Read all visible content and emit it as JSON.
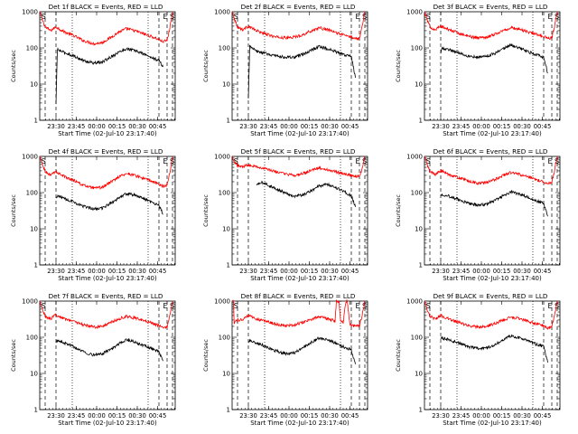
{
  "chart_data": [
    {
      "type": "line",
      "title": "Det 1f BLACK = Events, RED = LLD",
      "ylabel": "Counts/sec",
      "xlabel": "Start Time (02-Jul-10 23:17:40)",
      "x_tick_labels": [
        "23:30",
        "23:45",
        "00:00",
        "00:15",
        "00:30",
        "00:45"
      ],
      "y_tick_labels": [
        "1",
        "10",
        "100",
        "1000"
      ],
      "ylim": [
        1,
        1000
      ],
      "yscale": "log",
      "xlim_minutes": [
        0,
        100
      ],
      "marker_labels": [
        "S",
        "E",
        "S"
      ],
      "series": [
        {
          "name": "LLD",
          "color": "#ff0000",
          "x": [
            0,
            2,
            4,
            8,
            12,
            18,
            25,
            32,
            40,
            46,
            52,
            58,
            64,
            70,
            76,
            82,
            88,
            91,
            94,
            96,
            98
          ],
          "y": [
            1000,
            600,
            380,
            300,
            380,
            280,
            220,
            160,
            130,
            140,
            190,
            270,
            340,
            300,
            250,
            210,
            170,
            150,
            160,
            350,
            1000
          ]
        },
        {
          "name": "Events",
          "color": "#000000",
          "x": [
            12,
            13,
            18,
            25,
            32,
            40,
            46,
            52,
            58,
            64,
            70,
            76,
            82,
            88,
            91
          ],
          "y": [
            2.8,
            90,
            75,
            60,
            45,
            38,
            40,
            55,
            75,
            95,
            85,
            70,
            55,
            45,
            30
          ]
        }
      ]
    },
    {
      "type": "line",
      "title": "Det 2f BLACK = Events, RED = LLD",
      "ylabel": "Counts/sec",
      "xlabel": "Start Time (02-Jul-10 23:17:40)",
      "x_tick_labels": [
        "23:30",
        "23:45",
        "00:00",
        "00:15",
        "00:30",
        "00:45"
      ],
      "y_tick_labels": [
        "1",
        "10",
        "100",
        "1000"
      ],
      "ylim": [
        1,
        1000
      ],
      "yscale": "log",
      "xlim_minutes": [
        0,
        100
      ],
      "marker_labels": [
        "S",
        "E",
        "S"
      ],
      "series": [
        {
          "name": "LLD",
          "color": "#ff0000",
          "x": [
            0,
            2,
            4,
            8,
            12,
            18,
            25,
            32,
            40,
            46,
            52,
            58,
            64,
            70,
            76,
            82,
            88,
            91,
            94,
            96,
            98
          ],
          "y": [
            1000,
            600,
            380,
            320,
            400,
            300,
            240,
            200,
            190,
            200,
            230,
            290,
            360,
            320,
            270,
            230,
            200,
            180,
            190,
            400,
            1000
          ]
        },
        {
          "name": "Events",
          "color": "#000000",
          "x": [
            12,
            13,
            18,
            25,
            32,
            40,
            46,
            52,
            58,
            64,
            70,
            76,
            82,
            88,
            91
          ],
          "y": [
            4,
            110,
            80,
            70,
            60,
            55,
            55,
            65,
            85,
            110,
            95,
            80,
            65,
            60,
            15
          ]
        }
      ]
    },
    {
      "type": "line",
      "title": "Det 3f BLACK = Events, RED = LLD",
      "ylabel": "Counts/sec",
      "xlabel": "Start Time (02-Jul-10 23:17:40)",
      "x_tick_labels": [
        "23:30",
        "23:45",
        "00:00",
        "00:15",
        "00:30",
        "00:45"
      ],
      "y_tick_labels": [
        "1",
        "10",
        "100",
        "1000"
      ],
      "ylim": [
        1,
        1000
      ],
      "yscale": "log",
      "xlim_minutes": [
        0,
        100
      ],
      "marker_labels": [
        "S",
        "E",
        "S"
      ],
      "series": [
        {
          "name": "LLD",
          "color": "#ff0000",
          "x": [
            0,
            2,
            4,
            8,
            12,
            18,
            25,
            32,
            40,
            46,
            52,
            58,
            64,
            70,
            76,
            82,
            88,
            91,
            94,
            96,
            98
          ],
          "y": [
            1000,
            600,
            380,
            320,
            400,
            320,
            260,
            210,
            190,
            200,
            240,
            300,
            360,
            330,
            280,
            240,
            210,
            180,
            190,
            400,
            1000
          ]
        },
        {
          "name": "Events",
          "color": "#000000",
          "x": [
            12,
            13,
            18,
            25,
            32,
            40,
            46,
            52,
            58,
            64,
            70,
            76,
            82,
            88,
            91
          ],
          "y": [
            70,
            100,
            90,
            75,
            60,
            55,
            60,
            70,
            95,
            120,
            100,
            80,
            65,
            55,
            20
          ]
        }
      ]
    },
    {
      "type": "line",
      "title": "Det 4f BLACK = Events, RED = LLD",
      "ylabel": "Counts/sec",
      "xlabel": "Start Time (02-Jul-10 23:17:40)",
      "x_tick_labels": [
        "23:30",
        "23:45",
        "00:00",
        "00:15",
        "00:30",
        "00:45"
      ],
      "y_tick_labels": [
        "1",
        "10",
        "100",
        "1000"
      ],
      "ylim": [
        1,
        1000
      ],
      "yscale": "log",
      "xlim_minutes": [
        0,
        100
      ],
      "marker_labels": [
        "S",
        "E",
        "S"
      ],
      "series": [
        {
          "name": "LLD",
          "color": "#ff0000",
          "x": [
            0,
            2,
            4,
            8,
            12,
            18,
            25,
            32,
            40,
            46,
            52,
            58,
            64,
            70,
            76,
            82,
            88,
            91,
            94,
            96,
            98
          ],
          "y": [
            1000,
            600,
            380,
            300,
            380,
            280,
            220,
            160,
            130,
            140,
            190,
            270,
            340,
            300,
            250,
            210,
            170,
            150,
            160,
            350,
            1000
          ]
        },
        {
          "name": "Events",
          "color": "#000000",
          "x": [
            12,
            13,
            18,
            25,
            32,
            40,
            46,
            52,
            58,
            64,
            70,
            76,
            82,
            88,
            91
          ],
          "y": [
            70,
            80,
            70,
            55,
            42,
            35,
            37,
            50,
            70,
            95,
            85,
            70,
            55,
            45,
            25
          ]
        }
      ]
    },
    {
      "type": "line",
      "title": "Det 5f BLACK = Events, RED = LLD",
      "ylabel": "Counts/sec",
      "xlabel": "Start Time (02-Jul-10 23:17:40)",
      "x_tick_labels": [
        "23:30",
        "23:45",
        "00:00",
        "00:15",
        "00:30",
        "00:45"
      ],
      "y_tick_labels": [
        "1",
        "10",
        "100",
        "1000"
      ],
      "ylim": [
        1,
        1000
      ],
      "yscale": "log",
      "xlim_minutes": [
        0,
        100
      ],
      "marker_labels": [
        "S",
        "E",
        "S"
      ],
      "series": [
        {
          "name": "LLD",
          "color": "#ff0000",
          "x": [
            0,
            2,
            4,
            8,
            12,
            18,
            25,
            32,
            40,
            46,
            52,
            58,
            64,
            70,
            76,
            82,
            88,
            91,
            94,
            96,
            98
          ],
          "y": [
            1000,
            700,
            550,
            520,
            600,
            520,
            450,
            380,
            320,
            300,
            330,
            400,
            480,
            430,
            380,
            340,
            300,
            280,
            290,
            450,
            1000
          ]
        },
        {
          "name": "Events",
          "color": "#000000",
          "x": [
            18,
            22,
            25,
            32,
            40,
            46,
            52,
            58,
            64,
            70,
            76,
            82,
            88,
            91
          ],
          "y": [
            160,
            190,
            170,
            130,
            95,
            80,
            85,
            110,
            150,
            170,
            140,
            110,
            80,
            40
          ]
        }
      ]
    },
    {
      "type": "line",
      "title": "Det 6f BLACK = Events, RED = LLD",
      "ylabel": "Counts/sec",
      "xlabel": "Start Time (02-Jul-10 23:17:40)",
      "x_tick_labels": [
        "23:30",
        "23:45",
        "00:00",
        "00:15",
        "00:30",
        "00:45"
      ],
      "y_tick_labels": [
        "1",
        "10",
        "100",
        "1000"
      ],
      "ylim": [
        1,
        1000
      ],
      "yscale": "log",
      "xlim_minutes": [
        0,
        100
      ],
      "marker_labels": [
        "S",
        "E",
        "S"
      ],
      "series": [
        {
          "name": "LLD",
          "color": "#ff0000",
          "x": [
            0,
            2,
            4,
            8,
            12,
            18,
            25,
            32,
            40,
            46,
            52,
            58,
            64,
            70,
            76,
            82,
            88,
            91,
            94,
            96,
            98
          ],
          "y": [
            1000,
            600,
            380,
            320,
            400,
            320,
            260,
            210,
            180,
            190,
            230,
            300,
            360,
            320,
            270,
            230,
            200,
            180,
            190,
            400,
            1000
          ]
        },
        {
          "name": "Events",
          "color": "#000000",
          "x": [
            12,
            13,
            18,
            25,
            32,
            40,
            46,
            52,
            58,
            64,
            70,
            76,
            82,
            88,
            91
          ],
          "y": [
            80,
            90,
            80,
            65,
            50,
            45,
            48,
            60,
            80,
            105,
            90,
            75,
            60,
            50,
            22
          ]
        }
      ]
    },
    {
      "type": "line",
      "title": "Det 7f BLACK = Events, RED = LLD",
      "ylabel": "Counts/sec",
      "xlabel": "Start Time (02-Jul-10 23:17:40)",
      "x_tick_labels": [
        "23:30",
        "23:45",
        "00:00",
        "00:15",
        "00:30",
        "00:45"
      ],
      "y_tick_labels": [
        "1",
        "10",
        "100",
        "1000"
      ],
      "ylim": [
        1,
        1000
      ],
      "yscale": "log",
      "xlim_minutes": [
        0,
        100
      ],
      "marker_labels": [
        "S",
        "E",
        "S"
      ],
      "series": [
        {
          "name": "LLD",
          "color": "#ff0000",
          "x": [
            0,
            2,
            4,
            8,
            12,
            18,
            25,
            32,
            40,
            46,
            52,
            58,
            64,
            70,
            76,
            82,
            88,
            91,
            94,
            96,
            98
          ],
          "y": [
            1000,
            600,
            380,
            320,
            420,
            330,
            280,
            220,
            190,
            200,
            250,
            320,
            380,
            340,
            290,
            250,
            210,
            180,
            190,
            400,
            1000
          ]
        },
        {
          "name": "Events",
          "color": "#000000",
          "x": [
            12,
            13,
            18,
            25,
            32,
            40,
            46,
            52,
            58,
            64,
            70,
            76,
            82,
            88,
            91
          ],
          "y": [
            70,
            80,
            70,
            55,
            40,
            32,
            35,
            45,
            65,
            85,
            75,
            60,
            50,
            40,
            22
          ]
        }
      ]
    },
    {
      "type": "line",
      "title": "Det 8f BLACK = Events, RED = LLD",
      "ylabel": "Counts/sec",
      "xlabel": "Start Time (02-Jul-10 23:17:40)",
      "x_tick_labels": [
        "23:30",
        "23:45",
        "00:00",
        "00:15",
        "00:30",
        "00:45"
      ],
      "y_tick_labels": [
        "1",
        "10",
        "100",
        "1000"
      ],
      "ylim": [
        1,
        1000
      ],
      "yscale": "log",
      "xlim_minutes": [
        0,
        100
      ],
      "marker_labels": [
        "S",
        "E",
        "S"
      ],
      "series": [
        {
          "name": "LLD",
          "color": "#ff0000",
          "x": [
            0,
            1,
            1.5,
            4,
            8,
            12,
            18,
            25,
            32,
            40,
            46,
            52,
            58,
            64,
            70,
            76,
            77,
            79,
            80,
            82,
            84,
            85,
            87,
            88,
            91,
            94,
            96,
            98
          ],
          "y": [
            1000,
            1000,
            250,
            300,
            300,
            400,
            320,
            280,
            230,
            210,
            220,
            260,
            310,
            370,
            330,
            280,
            1000,
            1000,
            280,
            260,
            1000,
            1000,
            220,
            220,
            200,
            210,
            400,
            1000
          ]
        },
        {
          "name": "Events",
          "color": "#000000",
          "x": [
            12,
            13,
            18,
            25,
            32,
            40,
            46,
            52,
            58,
            64,
            70,
            76,
            82,
            88,
            91
          ],
          "y": [
            70,
            80,
            70,
            55,
            42,
            35,
            37,
            50,
            70,
            95,
            85,
            70,
            55,
            45,
            18
          ]
        }
      ]
    },
    {
      "type": "line",
      "title": "Det 9f BLACK = Events, RED = LLD",
      "ylabel": "Counts/sec",
      "xlabel": "Start Time (02-Jul-10 23:17:40)",
      "x_tick_labels": [
        "23:30",
        "23:45",
        "00:00",
        "00:15",
        "00:30",
        "00:45"
      ],
      "y_tick_labels": [
        "1",
        "10",
        "100",
        "1000"
      ],
      "ylim": [
        1,
        1000
      ],
      "yscale": "log",
      "xlim_minutes": [
        0,
        100
      ],
      "marker_labels": [
        "S",
        "E",
        "S"
      ],
      "series": [
        {
          "name": "LLD",
          "color": "#ff0000",
          "x": [
            0,
            2,
            4,
            8,
            12,
            18,
            25,
            32,
            40,
            46,
            52,
            58,
            64,
            70,
            76,
            82,
            88,
            91,
            94,
            96,
            98
          ],
          "y": [
            1000,
            600,
            380,
            320,
            400,
            320,
            260,
            210,
            190,
            200,
            240,
            300,
            360,
            330,
            280,
            240,
            210,
            180,
            190,
            400,
            1000
          ]
        },
        {
          "name": "Events",
          "color": "#000000",
          "x": [
            12,
            13,
            18,
            25,
            32,
            40,
            46,
            52,
            58,
            64,
            70,
            76,
            82,
            88,
            91
          ],
          "y": [
            90,
            95,
            85,
            70,
            55,
            48,
            50,
            62,
            85,
            110,
            95,
            80,
            65,
            55,
            20
          ]
        }
      ]
    }
  ]
}
